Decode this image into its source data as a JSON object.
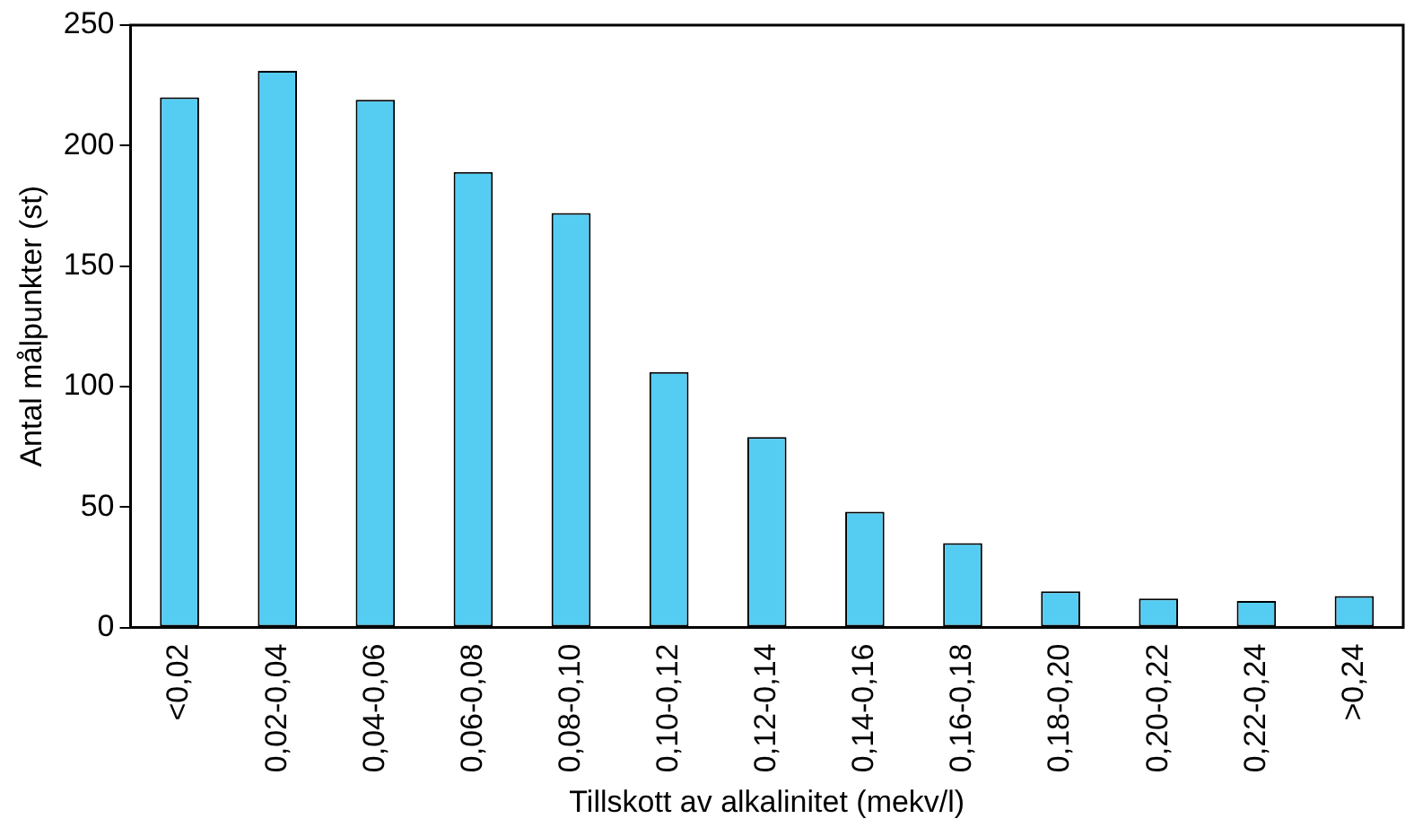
{
  "chart_data": {
    "type": "bar",
    "xlabel": "Tillskott av alkalinitet (mekv/l)",
    "ylabel": "Antal målpunkter (st)",
    "categories": [
      "<0,02",
      "0,02-0,04",
      "0,04-0,06",
      "0,06-0,08",
      "0,08-0,10",
      "0,10-0,12",
      "0,12-0,14",
      "0,14-0,16",
      "0,16-0,18",
      "0,18-0,20",
      "0,20-0,22",
      "0,22-0,24",
      ">0,24"
    ],
    "values": [
      220,
      231,
      219,
      189,
      172,
      106,
      79,
      48,
      35,
      15,
      12,
      11,
      13
    ],
    "color": "#55cdf3",
    "ylim": [
      0,
      250
    ],
    "yticks": [
      0,
      50,
      100,
      150,
      200,
      250
    ],
    "grid": false,
    "legend": false
  }
}
